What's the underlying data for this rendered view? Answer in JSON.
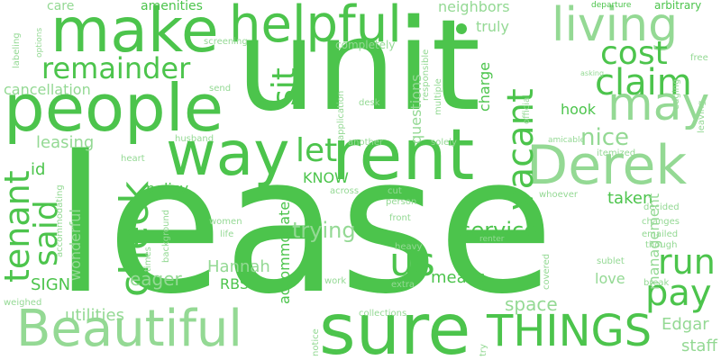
{
  "words": {
    "lease": "lease",
    "unit": "unit",
    "sure": "sure",
    "rent": "rent",
    "people": "people",
    "make": "make",
    "helpful": "helpful",
    "way": "way",
    "derek": "Derek",
    "beautiful": "Beautiful",
    "living": "living",
    "may": "may",
    "things": "THINGS",
    "claim": "claim",
    "check": "check",
    "said": "said",
    "pay": "pay",
    "us": "us",
    "run": "run",
    "cost": "cost",
    "remainder": "remainder",
    "vacant": "vacant",
    "let": "let",
    "sit": "sit",
    "tenant": "tenant",
    "nice": "nice",
    "service": "service",
    "trying": "trying",
    "accommodate": "accommodate",
    "hannah": "Hannah",
    "eager": "eager",
    "means": "means",
    "space": "space",
    "edgar": "Edgar",
    "staff": "staff",
    "utilities": "utilities",
    "wonderful": "wonderful",
    "sign": "SIGN",
    "rbs": "RBS",
    "love": "love",
    "policy": "policy",
    "know": "KNOW",
    "id": "id",
    "leasing": "leasing",
    "cancellation": "cancellation",
    "management": "management",
    "taken": "taken",
    "hook": "hook",
    "charge": "charge",
    "questions": "questions",
    "care": "care",
    "amenities": "amenities",
    "neighbors": "neighbors",
    "truly": "truly",
    "departure": "departure",
    "arbitrary": "arbitrary",
    "labeling": "labeling",
    "options": "options",
    "screening": "screening",
    "completely": "completely",
    "send": "send",
    "application": "application",
    "responsible": "responsible",
    "multiple": "multiple",
    "official": "official",
    "asking": "asking",
    "free": "free",
    "edging": "edging",
    "leaving": "leaving",
    "desk": "desk",
    "husband": "husband",
    "another": "another",
    "solely": "solely",
    "amicable": "amicable",
    "itemized": "itemized",
    "heart": "heart",
    "accommodating": "accommodating",
    "background": "background",
    "across": "across",
    "cut": "cut",
    "person": "person",
    "whoever": "whoever",
    "decided": "decided",
    "changes": "changes",
    "emailed": "emailed",
    "though": "though",
    "women": "women",
    "life": "life",
    "times": "times",
    "front": "front",
    "heavy": "heavy",
    "renter": "renter",
    "covered": "covered",
    "sublet": "sublet",
    "break": "break",
    "work": "work",
    "extra": "extra",
    "weighed": "weighed",
    "notice": "notice",
    "collections": "collections",
    "try": "try"
  }
}
